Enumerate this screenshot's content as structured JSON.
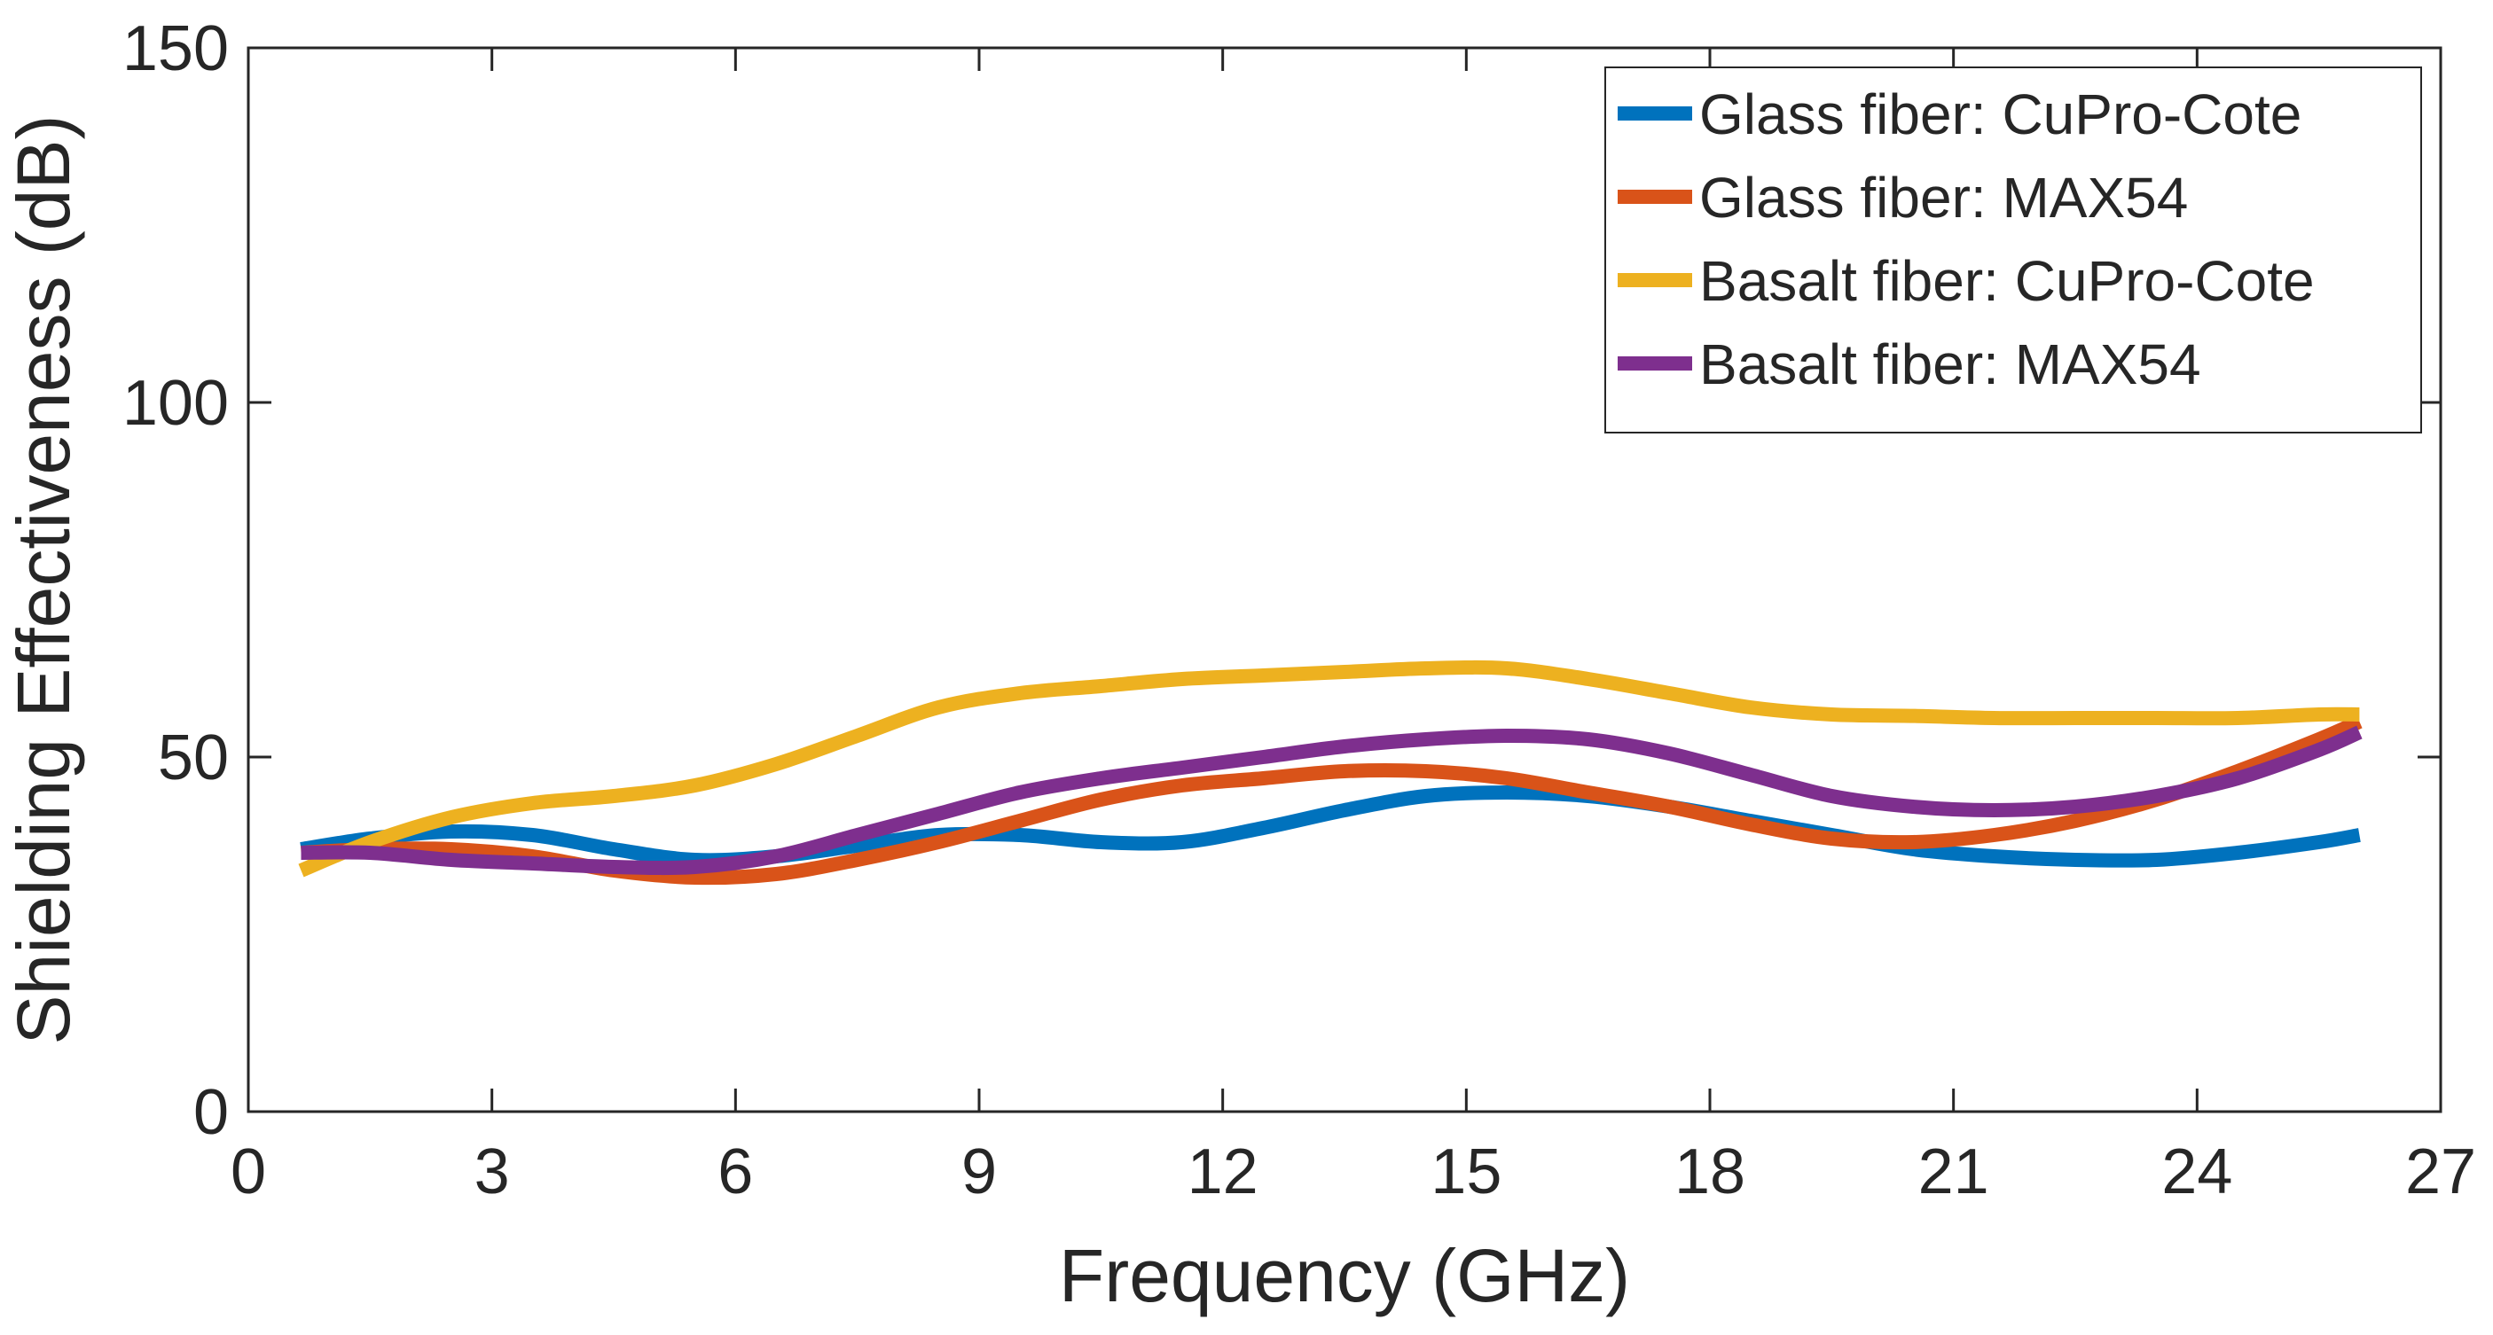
{
  "chart_data": {
    "type": "line",
    "title": "",
    "xlabel": "Frequency (GHz)",
    "ylabel": "Shielding Effectiveness (dB)",
    "xlim": [
      0,
      27
    ],
    "ylim": [
      0,
      150
    ],
    "xticks": [
      0,
      3,
      6,
      9,
      12,
      15,
      18,
      21,
      24,
      27
    ],
    "yticks": [
      0,
      50,
      100,
      150
    ],
    "grid": false,
    "legend_position": "top-right",
    "series": [
      {
        "name": "Glass fiber: CuPro-Cote",
        "color": "#0072BD",
        "x": [
          0.65,
          1.5,
          2.5,
          3.5,
          4.5,
          5.5,
          6.5,
          7.5,
          8.5,
          9.5,
          10.5,
          11.5,
          12.5,
          13.5,
          14.5,
          15.5,
          16.5,
          17.5,
          18.5,
          19.5,
          20.5,
          21.5,
          22.5,
          23.5,
          24.5,
          25.5,
          26.0
        ],
        "y": [
          37,
          38.5,
          39.5,
          39,
          37,
          35.5,
          36,
          37.5,
          39,
          39,
          38,
          38,
          40,
          42.5,
          44.5,
          45,
          44.5,
          43,
          41,
          39,
          37,
          36,
          35.5,
          35.5,
          36.5,
          38,
          39
        ]
      },
      {
        "name": "Glass fiber: MAX54",
        "color": "#D95319",
        "x": [
          0.65,
          1.5,
          2.5,
          3.5,
          4.5,
          5.5,
          6.5,
          7.5,
          8.5,
          9.5,
          10.5,
          11.5,
          12.5,
          13.5,
          14.5,
          15.5,
          16.5,
          17.5,
          18.5,
          19.5,
          20.5,
          21.5,
          22.5,
          23.5,
          24.5,
          25.5,
          26.0
        ],
        "y": [
          36.5,
          37,
          37,
          36,
          34,
          33,
          33.5,
          35.5,
          38,
          41,
          44,
          46,
          47,
          48,
          48,
          47,
          45,
          43,
          40.5,
          38.5,
          38,
          39,
          41,
          44,
          48,
          52.5,
          55
        ]
      },
      {
        "name": "Basalt fiber: CuPro-Cote",
        "color": "#EDB120",
        "x": [
          0.65,
          1.5,
          2.5,
          3.5,
          4.5,
          5.5,
          6.5,
          7.5,
          8.5,
          9.5,
          10.5,
          11.5,
          12.5,
          13.5,
          14.5,
          15.5,
          16.5,
          17.5,
          18.5,
          19.5,
          20.5,
          21.5,
          22.5,
          23.5,
          24.5,
          25.5,
          26.0
        ],
        "y": [
          34,
          38,
          41.5,
          43.5,
          44.5,
          46,
          49,
          53,
          57,
          59,
          60,
          61,
          61.5,
          62,
          62.5,
          62.5,
          61,
          59,
          57,
          56,
          55.8,
          55.5,
          55.5,
          55.5,
          55.5,
          56,
          56
        ]
      },
      {
        "name": "Basalt fiber: MAX54",
        "color": "#7E2F8E",
        "x": [
          0.65,
          1.5,
          2.5,
          3.5,
          4.5,
          5.5,
          6.5,
          7.5,
          8.5,
          9.5,
          10.5,
          11.5,
          12.5,
          13.5,
          14.5,
          15.5,
          16.5,
          17.5,
          18.5,
          19.5,
          20.5,
          21.5,
          22.5,
          23.5,
          24.5,
          25.5,
          26.0
        ],
        "y": [
          36.5,
          36.5,
          35.5,
          35,
          34.5,
          34.5,
          36,
          39,
          42,
          45,
          47,
          48.5,
          50,
          51.5,
          52.5,
          53,
          52.5,
          50.5,
          47.5,
          44.5,
          43,
          42.5,
          43,
          44.5,
          47,
          51,
          53.5
        ]
      }
    ]
  }
}
